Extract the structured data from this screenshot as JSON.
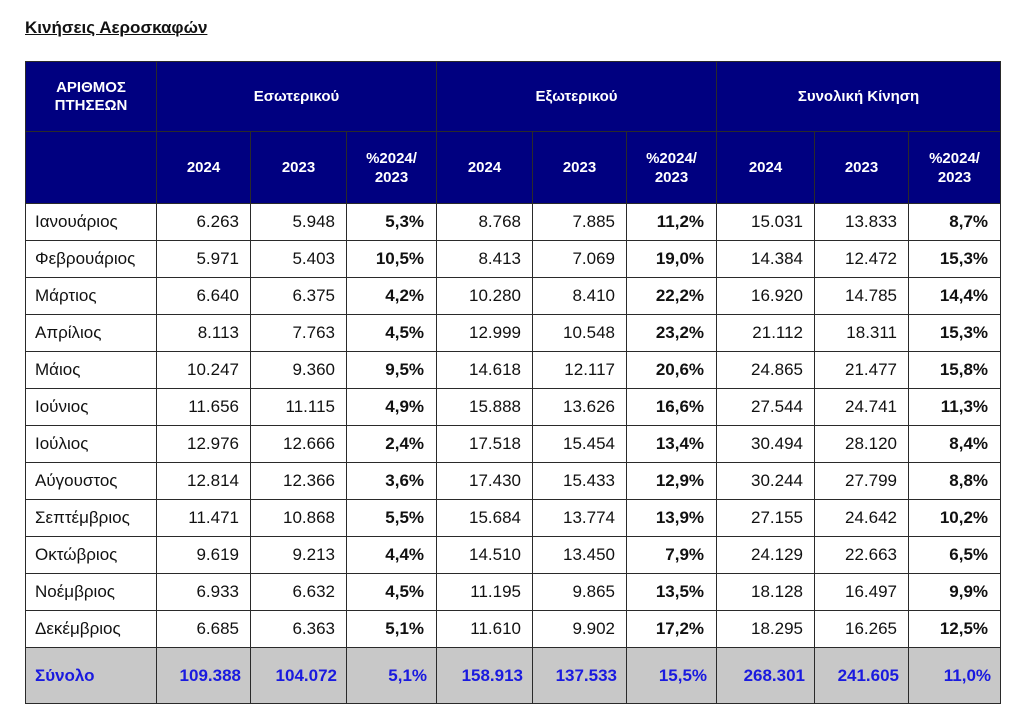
{
  "title": "Κινήσεις Αεροσκαφών",
  "header": {
    "corner": [
      "ΑΡΙΘΜΟΣ",
      "ΠΤΗΣΕΩΝ"
    ],
    "groups": [
      "Εσωτερικού",
      "Εξωτερικού",
      "Συνολική Κίνηση"
    ],
    "sub": [
      "2024",
      "2023",
      "%2024/ 2023"
    ]
  },
  "rows": [
    {
      "month": "Ιανουάριος",
      "d24": "6.263",
      "d23": "5.948",
      "dp": "5,3%",
      "i24": "8.768",
      "i23": "7.885",
      "ip": "11,2%",
      "t24": "15.031",
      "t23": "13.833",
      "tp": "8,7%"
    },
    {
      "month": "Φεβρουάριος",
      "d24": "5.971",
      "d23": "5.403",
      "dp": "10,5%",
      "i24": "8.413",
      "i23": "7.069",
      "ip": "19,0%",
      "t24": "14.384",
      "t23": "12.472",
      "tp": "15,3%"
    },
    {
      "month": "Μάρτιος",
      "d24": "6.640",
      "d23": "6.375",
      "dp": "4,2%",
      "i24": "10.280",
      "i23": "8.410",
      "ip": "22,2%",
      "t24": "16.920",
      "t23": "14.785",
      "tp": "14,4%"
    },
    {
      "month": "Απρίλιος",
      "d24": "8.113",
      "d23": "7.763",
      "dp": "4,5%",
      "i24": "12.999",
      "i23": "10.548",
      "ip": "23,2%",
      "t24": "21.112",
      "t23": "18.311",
      "tp": "15,3%"
    },
    {
      "month": "Μάιος",
      "d24": "10.247",
      "d23": "9.360",
      "dp": "9,5%",
      "i24": "14.618",
      "i23": "12.117",
      "ip": "20,6%",
      "t24": "24.865",
      "t23": "21.477",
      "tp": "15,8%"
    },
    {
      "month": "Ιούνιος",
      "d24": "11.656",
      "d23": "11.115",
      "dp": "4,9%",
      "i24": "15.888",
      "i23": "13.626",
      "ip": "16,6%",
      "t24": "27.544",
      "t23": "24.741",
      "tp": "11,3%"
    },
    {
      "month": "Ιούλιος",
      "d24": "12.976",
      "d23": "12.666",
      "dp": "2,4%",
      "i24": "17.518",
      "i23": "15.454",
      "ip": "13,4%",
      "t24": "30.494",
      "t23": "28.120",
      "tp": "8,4%"
    },
    {
      "month": "Αύγουστος",
      "d24": "12.814",
      "d23": "12.366",
      "dp": "3,6%",
      "i24": "17.430",
      "i23": "15.433",
      "ip": "12,9%",
      "t24": "30.244",
      "t23": "27.799",
      "tp": "8,8%"
    },
    {
      "month": "Σεπτέμβριος",
      "d24": "11.471",
      "d23": "10.868",
      "dp": "5,5%",
      "i24": "15.684",
      "i23": "13.774",
      "ip": "13,9%",
      "t24": "27.155",
      "t23": "24.642",
      "tp": "10,2%"
    },
    {
      "month": "Οκτώβριος",
      "d24": "9.619",
      "d23": "9.213",
      "dp": "4,4%",
      "i24": "14.510",
      "i23": "13.450",
      "ip": "7,9%",
      "t24": "24.129",
      "t23": "22.663",
      "tp": "6,5%"
    },
    {
      "month": "Νοέμβριος",
      "d24": "6.933",
      "d23": "6.632",
      "dp": "4,5%",
      "i24": "11.195",
      "i23": "9.865",
      "ip": "13,5%",
      "t24": "18.128",
      "t23": "16.497",
      "tp": "9,9%"
    },
    {
      "month": "Δεκέμβριος",
      "d24": "6.685",
      "d23": "6.363",
      "dp": "5,1%",
      "i24": "11.610",
      "i23": "9.902",
      "ip": "17,2%",
      "t24": "18.295",
      "t23": "16.265",
      "tp": "12,5%"
    }
  ],
  "total": {
    "month": "Σύνολο",
    "d24": "109.388",
    "d23": "104.072",
    "dp": "5,1%",
    "i24": "158.913",
    "i23": "137.533",
    "ip": "15,5%",
    "t24": "268.301",
    "t23": "241.605",
    "tp": "11,0%"
  },
  "colors": {
    "header_bg": "#000080",
    "header_text": "#ffffff",
    "total_bg": "#c8c8c8",
    "total_text": "#1a1adf"
  }
}
